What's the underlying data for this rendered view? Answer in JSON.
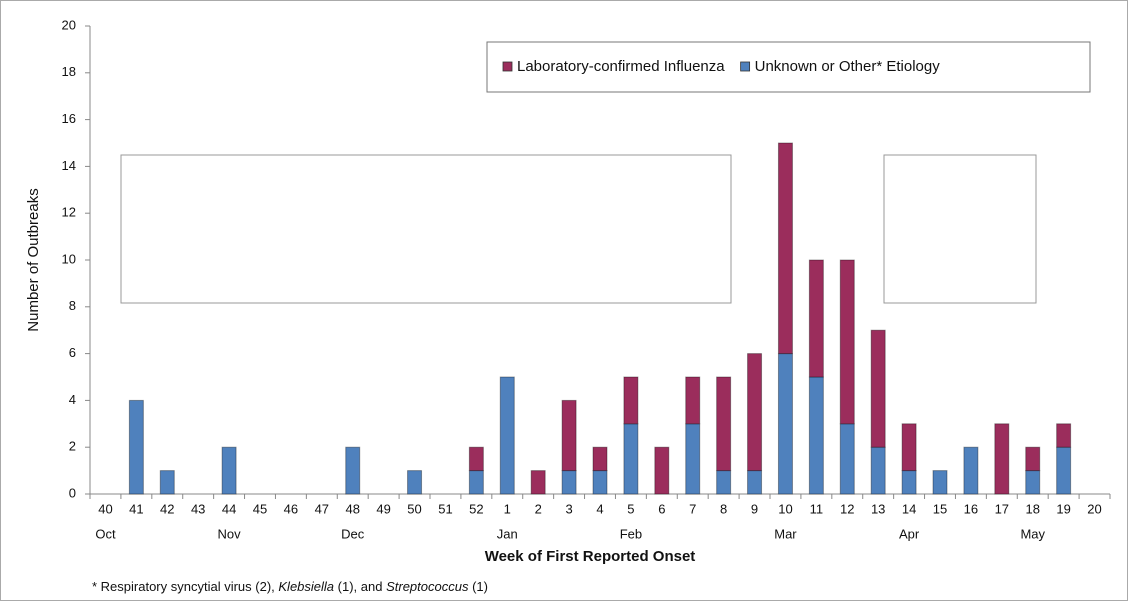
{
  "chart_data": {
    "type": "stacked_bar",
    "categories": [
      "40",
      "41",
      "42",
      "43",
      "44",
      "45",
      "46",
      "47",
      "48",
      "49",
      "50",
      "51",
      "52",
      "1",
      "2",
      "3",
      "4",
      "5",
      "6",
      "7",
      "8",
      "9",
      "10",
      "11",
      "12",
      "13",
      "14",
      "15",
      "16",
      "17",
      "18",
      "19",
      "20"
    ],
    "month_labels": [
      "Oct",
      null,
      null,
      null,
      "Nov",
      null,
      null,
      null,
      "Dec",
      null,
      null,
      null,
      null,
      "Jan",
      null,
      null,
      null,
      "Feb",
      null,
      null,
      null,
      null,
      "Mar",
      null,
      null,
      null,
      "Apr",
      null,
      null,
      null,
      "May",
      null,
      null
    ],
    "series": [
      {
        "name": "Laboratory-confirmed Influenza",
        "color": "#9b2d5c",
        "values": [
          0,
          0,
          0,
          0,
          0,
          0,
          0,
          0,
          0,
          0,
          0,
          0,
          1,
          0,
          1,
          3,
          1,
          2,
          2,
          2,
          4,
          5,
          9,
          5,
          7,
          5,
          2,
          0,
          0,
          3,
          1,
          1,
          0
        ]
      },
      {
        "name": "Unknown or Other* Etiology",
        "color": "#4f81bd",
        "values": [
          0,
          4,
          1,
          0,
          2,
          0,
          0,
          0,
          2,
          0,
          1,
          0,
          1,
          5,
          0,
          1,
          1,
          3,
          0,
          3,
          1,
          1,
          6,
          5,
          3,
          2,
          1,
          1,
          2,
          0,
          1,
          2,
          0
        ]
      }
    ],
    "ylim": [
      0,
      20
    ],
    "yticks": [
      0,
      2,
      4,
      6,
      8,
      10,
      12,
      14,
      16,
      18,
      20
    ],
    "y_label": "Number of Outbreaks",
    "x_label": "Week of First Reported Onset",
    "footnote": [
      {
        "text": "* Respiratory syncytial virus (2), ",
        "italic": false
      },
      {
        "text": "Klebsiella",
        "italic": true
      },
      {
        "text": " (1), and ",
        "italic": false
      },
      {
        "text": "Streptococcus",
        "italic": true
      },
      {
        "text": " (1)",
        "italic": false
      }
    ]
  }
}
